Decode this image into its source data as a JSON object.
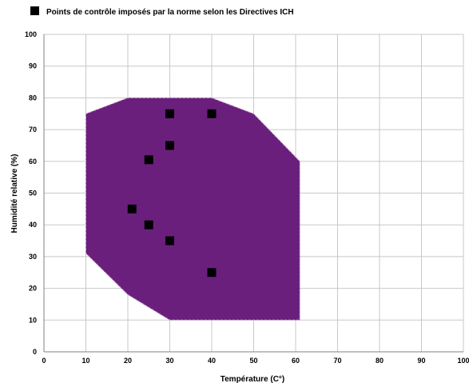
{
  "chart_data": {
    "type": "scatter",
    "legend": {
      "position": "top-left",
      "label": "Points de contrôle imposés par la norme selon les Directives ICH"
    },
    "xlabel": "Température (C°)",
    "ylabel": "Humidité relative (%)",
    "xlim": [
      0,
      100
    ],
    "ylim": [
      0,
      100
    ],
    "x_ticks": [
      "0",
      "10",
      "20",
      "30",
      "40",
      "50",
      "60",
      "70",
      "80",
      "90",
      "100"
    ],
    "y_ticks": [
      "0",
      "10",
      "20",
      "30",
      "40",
      "50",
      "60",
      "70",
      "80",
      "90",
      "100"
    ],
    "grid": true,
    "region": {
      "color": "#6b1f7c",
      "points": [
        [
          10,
          75
        ],
        [
          20,
          80
        ],
        [
          40,
          80
        ],
        [
          50,
          75
        ],
        [
          61,
          60
        ],
        [
          61,
          10
        ],
        [
          30,
          10
        ],
        [
          20,
          18
        ],
        [
          10,
          31
        ]
      ]
    },
    "series": [
      {
        "name": "Points de contrôle imposés par la norme selon les Directives ICH",
        "color": "#000000",
        "points": [
          [
            30,
            75
          ],
          [
            40,
            75
          ],
          [
            30,
            65
          ],
          [
            25,
            60.5
          ],
          [
            21,
            45
          ],
          [
            25,
            40
          ],
          [
            30,
            35
          ],
          [
            40,
            25
          ]
        ]
      }
    ]
  }
}
